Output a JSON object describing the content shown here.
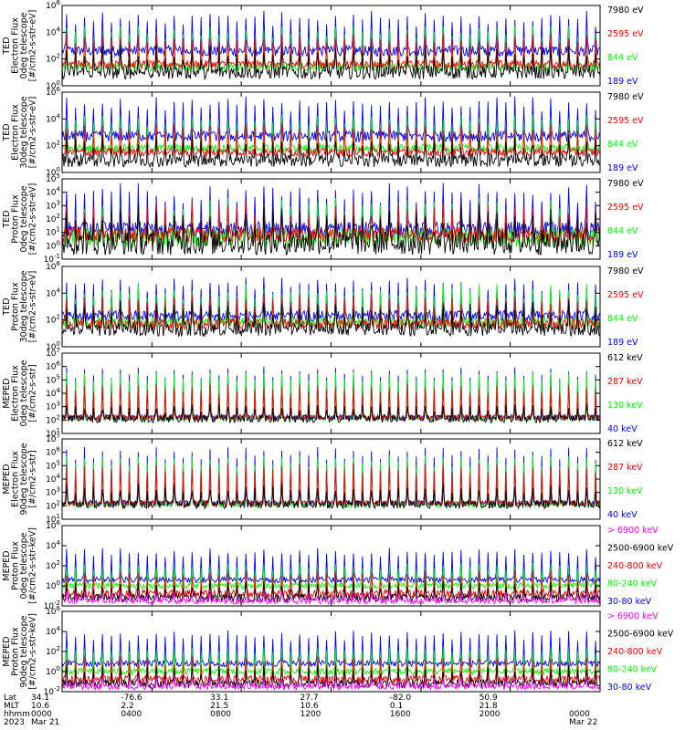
{
  "colors": {
    "black": "#000000",
    "blue": "#0000ff",
    "red": "#ff0000",
    "green": "#00ff00",
    "magenta": "#ff00ff"
  },
  "chart_data": [
    {
      "type": "line",
      "instrument": "TED",
      "ylabel": [
        "TED",
        "Electron Flux",
        "0deg telescope",
        "[#/cm2-s-str-eV]"
      ],
      "ylim_exp": [
        0,
        6
      ],
      "tick_labels": [
        "10^0",
        "10^2",
        "10^4",
        "10^6"
      ],
      "series": [
        {
          "name": "7980 eV",
          "color": "#000000",
          "base": 1.0,
          "peak": 2.6,
          "noise": 0.5
        },
        {
          "name": "2595 eV",
          "color": "#ff0000",
          "base": 1.6,
          "peak": 3.6,
          "noise": 0.3
        },
        {
          "name": "844 eV",
          "color": "#00ff00",
          "base": 1.4,
          "peak": 4.2,
          "noise": 0.3
        },
        {
          "name": "189 eV",
          "color": "#0000ff",
          "base": 2.6,
          "peak": 5.2,
          "noise": 0.4
        }
      ]
    },
    {
      "type": "line",
      "instrument": "TED",
      "ylabel": [
        "TED",
        "Electron Flux",
        "30deg telescope",
        "[#/cm2-s-str-eV]"
      ],
      "ylim_exp": [
        0,
        6
      ],
      "tick_labels": [
        "10^0",
        "10^2",
        "10^4",
        "10^6"
      ],
      "series": [
        {
          "name": "7980 eV",
          "color": "#000000",
          "base": 0.9,
          "peak": 2.4,
          "noise": 0.5
        },
        {
          "name": "2595 eV",
          "color": "#ff0000",
          "base": 1.5,
          "peak": 3.4,
          "noise": 0.3
        },
        {
          "name": "844 eV",
          "color": "#00ff00",
          "base": 1.8,
          "peak": 4.0,
          "noise": 0.3
        },
        {
          "name": "189 eV",
          "color": "#0000ff",
          "base": 2.7,
          "peak": 5.3,
          "noise": 0.4
        }
      ]
    },
    {
      "type": "line",
      "instrument": "TED",
      "ylabel": [
        "TED",
        "Proton Flux",
        "0deg telescope",
        "[#/cm2-s-str-eV]"
      ],
      "ylim_exp": [
        -1,
        5
      ],
      "tick_labels": [
        "10^-1",
        "10^0",
        "10^1",
        "10^2",
        "10^3",
        "10^4",
        "10^5"
      ],
      "series": [
        {
          "name": "7980 eV",
          "color": "#000000",
          "base": 0.2,
          "peak": 2.2,
          "noise": 0.9
        },
        {
          "name": "2595 eV",
          "color": "#ff0000",
          "base": 0.8,
          "peak": 2.8,
          "noise": 0.6
        },
        {
          "name": "844 eV",
          "color": "#00ff00",
          "base": 0.6,
          "peak": 3.0,
          "noise": 0.7
        },
        {
          "name": "189 eV",
          "color": "#0000ff",
          "base": 1.2,
          "peak": 4.2,
          "noise": 0.6
        }
      ]
    },
    {
      "type": "line",
      "instrument": "TED",
      "ylabel": [
        "TED",
        "Proton Flux",
        "30deg telescope",
        "[#/cm2-s-str-eV]"
      ],
      "ylim_exp": [
        0,
        6
      ],
      "tick_labels": [
        "10^0",
        "10^2",
        "10^4",
        "10^6"
      ],
      "series": [
        {
          "name": "7980 eV",
          "color": "#000000",
          "base": 1.3,
          "peak": 3.0,
          "noise": 0.5
        },
        {
          "name": "2595 eV",
          "color": "#ff0000",
          "base": 1.7,
          "peak": 3.6,
          "noise": 0.4
        },
        {
          "name": "844 eV",
          "color": "#00ff00",
          "base": 1.8,
          "peak": 4.3,
          "noise": 0.4
        },
        {
          "name": "189 eV",
          "color": "#0000ff",
          "base": 2.3,
          "peak": 4.8,
          "noise": 0.4
        }
      ]
    },
    {
      "type": "line",
      "instrument": "MEPED",
      "ylabel": [
        "MEPED",
        "Electron Flux",
        "0deg telescope",
        "[#/cm2-s-str]"
      ],
      "ylim_exp": [
        1,
        7
      ],
      "tick_labels": [
        "10^1",
        "10^2",
        "10^3",
        "10^4",
        "10^5",
        "10^6",
        "10^7"
      ],
      "series": [
        {
          "name": "612 keV",
          "color": "#000000",
          "base": 2.1,
          "peak": 3.0,
          "noise": 0.3
        },
        {
          "name": "287 keV",
          "color": "#ff0000",
          "base": 2.2,
          "peak": 4.5,
          "noise": 0.2
        },
        {
          "name": "130 keV",
          "color": "#00ff00",
          "base": 2.1,
          "peak": 5.5,
          "noise": 0.1
        },
        {
          "name": "40 keV",
          "color": "#0000ff",
          "base": 2.2,
          "peak": 5.8,
          "noise": 0.2
        }
      ]
    },
    {
      "type": "line",
      "instrument": "MEPED",
      "ylabel": [
        "MEPED",
        "Electron Flux",
        "90deg telescope",
        "[#/cm2-s-str]"
      ],
      "ylim_exp": [
        1,
        7
      ],
      "tick_labels": [
        "10^1",
        "10^2",
        "10^3",
        "10^4",
        "10^5",
        "10^6",
        "10^7"
      ],
      "series": [
        {
          "name": "612 keV",
          "color": "#000000",
          "base": 2.1,
          "peak": 3.4,
          "noise": 0.3
        },
        {
          "name": "287 keV",
          "color": "#ff0000",
          "base": 2.2,
          "peak": 5.0,
          "noise": 0.2
        },
        {
          "name": "130 keV",
          "color": "#00ff00",
          "base": 2.1,
          "peak": 5.6,
          "noise": 0.2
        },
        {
          "name": "40 keV",
          "color": "#0000ff",
          "base": 2.2,
          "peak": 6.2,
          "noise": 0.2
        }
      ]
    },
    {
      "type": "line",
      "instrument": "MEPED",
      "ylabel": [
        "MEPED",
        "Proton Flux",
        "0deg telescope",
        "[#/cm2-s-str-keV]"
      ],
      "ylim_exp": [
        -2,
        6
      ],
      "tick_labels": [
        "10^-2",
        "10^0",
        "10^2",
        "10^4",
        "10^6"
      ],
      "series": [
        {
          "name": "> 6900 keV",
          "color": "#ff00ff",
          "base": -1.5,
          "peak": -0.8,
          "noise": 0.3
        },
        {
          "name": "2500-6900 keV",
          "color": "#000000",
          "base": -1.2,
          "peak": 0.2,
          "noise": 0.4
        },
        {
          "name": "240-800 keV",
          "color": "#ff0000",
          "base": -0.8,
          "peak": 1.2,
          "noise": 0.4
        },
        {
          "name": "80-240 keV",
          "color": "#00ff00",
          "base": 0.0,
          "peak": 2.0,
          "noise": 0.3
        },
        {
          "name": "30-80 keV",
          "color": "#0000ff",
          "base": 0.6,
          "peak": 3.5,
          "noise": 0.3
        }
      ]
    },
    {
      "type": "line",
      "instrument": "MEPED",
      "ylabel": [
        "MEPED",
        "Proton Flux",
        "90deg telescope",
        "[#/cm2-s-str-keV]"
      ],
      "ylim_exp": [
        -2,
        6
      ],
      "tick_labels": [
        "10^-2",
        "10^0",
        "10^2",
        "10^4",
        "10^6"
      ],
      "series": [
        {
          "name": "> 6900 keV",
          "color": "#ff00ff",
          "base": -1.5,
          "peak": -0.8,
          "noise": 0.3
        },
        {
          "name": "2500-6900 keV",
          "color": "#000000",
          "base": -1.2,
          "peak": 0.3,
          "noise": 0.4
        },
        {
          "name": "240-800 keV",
          "color": "#ff0000",
          "base": -0.8,
          "peak": 1.3,
          "noise": 0.4
        },
        {
          "name": "80-240 keV",
          "color": "#00ff00",
          "base": 0.0,
          "peak": 2.2,
          "noise": 0.3
        },
        {
          "name": "30-80 keV",
          "color": "#0000ff",
          "base": 0.8,
          "peak": 3.8,
          "noise": 0.3
        }
      ]
    }
  ],
  "x_axis": {
    "row_labels": [
      "Lat",
      "MLT",
      "hhmm",
      "2023"
    ],
    "fraction_ticks": [
      0,
      0.167,
      0.333,
      0.5,
      0.667,
      0.833,
      1.0
    ],
    "columns": [
      {
        "lat": "34.1",
        "mlt": "10.6",
        "hhmm": "0000",
        "date": "Mar 21"
      },
      {
        "lat": "-76.6",
        "mlt": "2.2",
        "hhmm": "0400",
        "date": ""
      },
      {
        "lat": "33.1",
        "mlt": "21.5",
        "hhmm": "0800",
        "date": ""
      },
      {
        "lat": "27.7",
        "mlt": "10.6",
        "hhmm": "1200",
        "date": ""
      },
      {
        "lat": "-82.0",
        "mlt": "0.1",
        "hhmm": "1600",
        "date": ""
      },
      {
        "lat": "50.9",
        "mlt": "21.8",
        "hhmm": "2000",
        "date": ""
      },
      {
        "lat": "",
        "mlt": "",
        "hhmm": "0000",
        "date": "Mar 22"
      }
    ]
  },
  "orbit_count": 30
}
